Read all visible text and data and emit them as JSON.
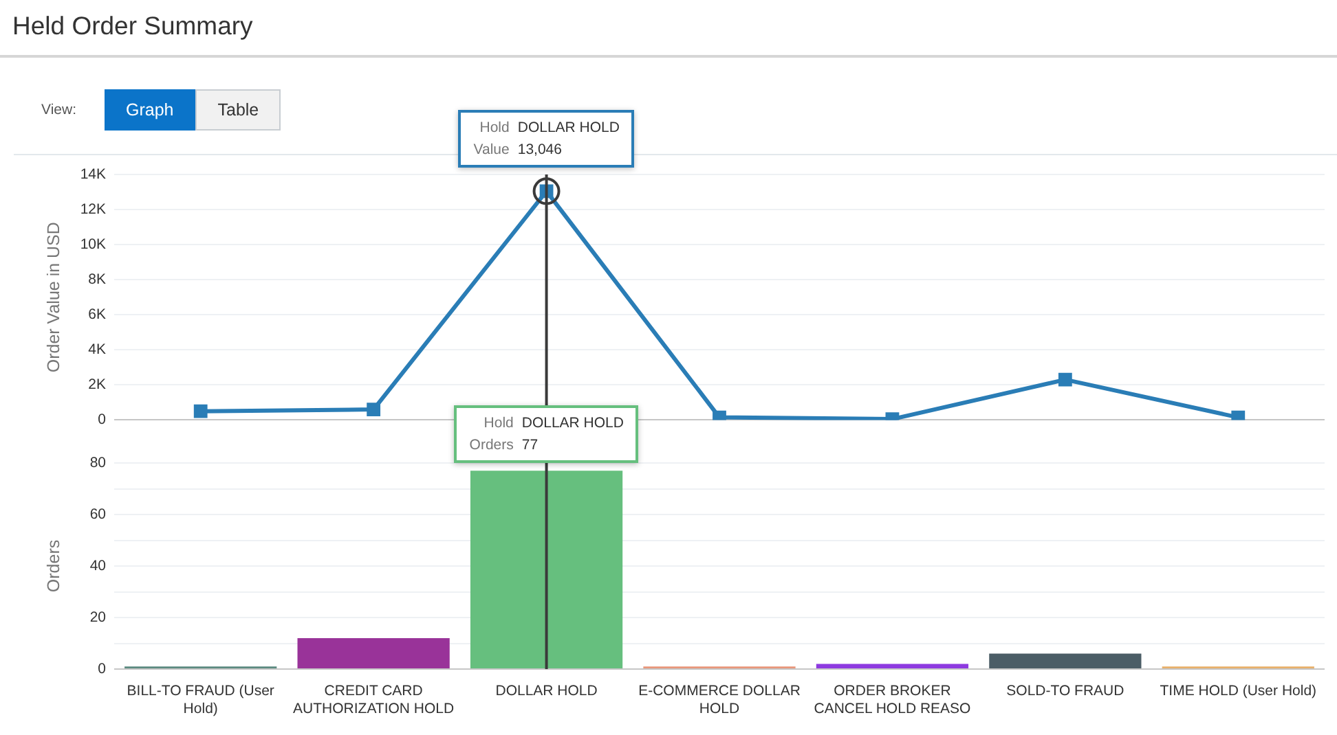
{
  "chart_data": [
    {
      "type": "line",
      "title": "Held Order Summary",
      "annotations": [
        "View:",
        "Graph",
        "Table",
        {
          "text": "Hold DOLLAR HOLD\nValue 13,046",
          "x": "DOLLAR HOLD",
          "y": 13046
        }
      ],
      "ylabel": "Order Value in USD",
      "categories": [
        "BILL-TO FRAUD (User Hold)",
        "CREDIT CARD AUTHORIZATION HOLD",
        "DOLLAR HOLD",
        "E-COMMERCE DOLLAR HOLD",
        "ORDER BROKER CANCEL HOLD REASO",
        "SOLD-TO FRAUD",
        "TIME HOLD (User Hold)"
      ],
      "values": [
        500,
        600,
        13046,
        150,
        50,
        2300,
        150
      ],
      "color": "#2a7db6",
      "ylim": [
        0,
        14000
      ],
      "yticks": [
        0,
        {
          "value": 2000,
          "label": "2K"
        },
        {
          "value": 4000,
          "label": "4K"
        },
        {
          "value": 6000,
          "label": "6K"
        },
        {
          "value": 8000,
          "label": "8K"
        },
        {
          "value": 10000,
          "label": "10K"
        },
        {
          "value": 12000,
          "label": "12K"
        },
        {
          "value": 14000,
          "label": "14K"
        }
      ],
      "ref_lines": [
        {
          "axis": "x",
          "value": "DOLLAR HOLD",
          "color": "#3a3a3a"
        }
      ],
      "grid": "y",
      "marker": "square",
      "tick_labels": "y"
    },
    {
      "type": "bar",
      "annotations": [
        {
          "text": "Hold DOLLAR HOLD\nOrders 77",
          "x": "DOLLAR HOLD",
          "y": 77
        }
      ],
      "ylabel": "Orders",
      "categories": [
        "BILL-TO FRAUD (User Hold)",
        "CREDIT CARD AUTHORIZATION HOLD",
        "DOLLAR HOLD",
        "E-COMMERCE DOLLAR HOLD",
        "ORDER BROKER CANCEL HOLD REASO",
        "SOLD-TO FRAUD",
        "TIME HOLD (User Hold)"
      ],
      "values": [
        1,
        12,
        77,
        1,
        2,
        6,
        1
      ],
      "colors": [
        "#5b8a80",
        "#993399",
        "#66bf7e",
        "#e8967a",
        "#8e3ae0",
        "#4b5d66",
        "#e8b06a"
      ],
      "ylim": [
        0,
        80
      ],
      "yticks": [
        0,
        {
          "value": 10,
          "label": null
        },
        20,
        {
          "value": 30,
          "label": null
        },
        40,
        {
          "value": 50,
          "label": null
        },
        60,
        {
          "value": 70,
          "label": null
        },
        80
      ],
      "ref_lines": [
        {
          "axis": "x",
          "value": "DOLLAR HOLD",
          "color": "#3a3a3a"
        }
      ],
      "grid": "y"
    }
  ]
}
